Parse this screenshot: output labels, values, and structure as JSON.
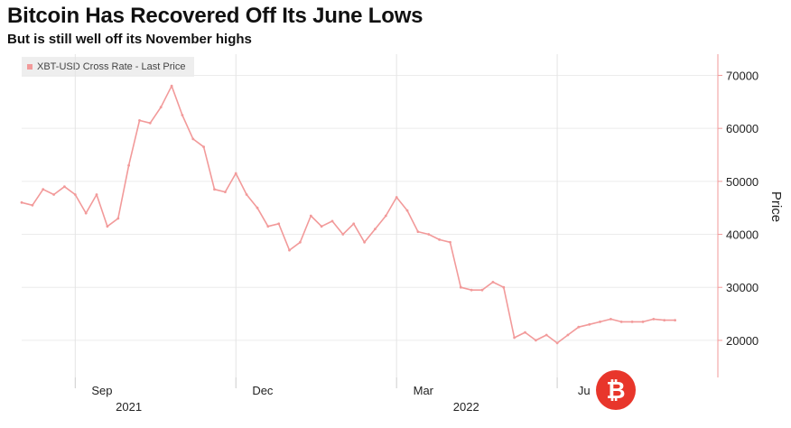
{
  "header": {
    "title": "Bitcoin Has Recovered Off Its June Lows",
    "subtitle": "But is still well off its November highs"
  },
  "legend": {
    "label": "XBT-USD Cross Rate - Last Price"
  },
  "watermark": {
    "glyph": "₿"
  },
  "chart_data": {
    "type": "line",
    "title": "Bitcoin Has Recovered Off Its June Lows",
    "subtitle": "But is still well off its November highs",
    "xlabel": "",
    "ylabel": "Price",
    "ylim": [
      13000,
      74000
    ],
    "y_ticks": [
      20000,
      30000,
      40000,
      50000,
      60000,
      70000
    ],
    "grid": true,
    "legend_position": "top-left",
    "x_ticks": [
      {
        "label": "Sep",
        "month": 1.5
      },
      {
        "label": "Dec",
        "month": 4.5
      },
      {
        "label": "Mar",
        "month": 7.5
      },
      {
        "label": "Ju",
        "month": 10.5
      }
    ],
    "year_labels": [
      {
        "label": "2021",
        "month": 2.0
      },
      {
        "label": "2022",
        "month": 8.3
      }
    ],
    "year_dividers": [
      1.0,
      4.0,
      7.0,
      10.0
    ],
    "x_range": [
      0,
      13.0
    ],
    "series": [
      {
        "name": "XBT-USD Cross Rate - Last Price",
        "color": "#f29a9a",
        "x": [
          0.0,
          0.2,
          0.4,
          0.6,
          0.8,
          1.0,
          1.2,
          1.4,
          1.6,
          1.8,
          2.0,
          2.2,
          2.4,
          2.6,
          2.8,
          3.0,
          3.2,
          3.4,
          3.6,
          3.8,
          4.0,
          4.2,
          4.4,
          4.6,
          4.8,
          5.0,
          5.2,
          5.4,
          5.6,
          5.8,
          6.0,
          6.2,
          6.4,
          6.6,
          6.8,
          7.0,
          7.2,
          7.4,
          7.6,
          7.8,
          8.0,
          8.2,
          8.4,
          8.6,
          8.8,
          9.0,
          9.2,
          9.4,
          9.6,
          9.8,
          10.0,
          10.2,
          10.4,
          10.6,
          10.8,
          11.0,
          11.2,
          11.4,
          11.6,
          11.8,
          12.0,
          12.2
        ],
        "values": [
          46000,
          45500,
          48500,
          47500,
          49000,
          47500,
          44000,
          47500,
          41500,
          43000,
          53000,
          61500,
          61000,
          64000,
          68000,
          62500,
          58000,
          56500,
          48500,
          48000,
          51500,
          47500,
          45000,
          41500,
          42000,
          37000,
          38500,
          43500,
          41500,
          42500,
          40000,
          42000,
          38500,
          41000,
          43500,
          47000,
          44500,
          40500,
          40000,
          39000,
          38500,
          30000,
          29500,
          29500,
          31000,
          30000,
          20500,
          21500,
          20000,
          21000,
          19500,
          21000,
          22500,
          23000,
          23500,
          24000,
          23500,
          23500,
          23500,
          24000,
          23800,
          23800
        ]
      }
    ]
  }
}
